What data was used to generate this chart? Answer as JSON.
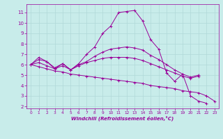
{
  "title": "",
  "xlabel": "Windchill (Refroidissement éolien,°C)",
  "background_color": "#c8ecea",
  "grid_color": "#b0d8d8",
  "line_color": "#990099",
  "xlim": [
    -0.5,
    23.5
  ],
  "ylim": [
    1.8,
    11.8
  ],
  "yticks": [
    2,
    3,
    4,
    5,
    6,
    7,
    8,
    9,
    10,
    11
  ],
  "xticks": [
    0,
    1,
    2,
    3,
    4,
    5,
    6,
    7,
    8,
    9,
    10,
    11,
    12,
    13,
    14,
    15,
    16,
    17,
    18,
    19,
    20,
    21,
    22,
    23
  ],
  "series": [
    {
      "x": [
        0,
        1,
        2,
        3,
        4,
        5,
        6,
        7,
        8,
        9,
        10,
        11,
        12,
        13,
        14,
        15,
        16,
        17,
        18,
        19,
        20,
        21,
        22
      ],
      "y": [
        6.0,
        6.7,
        6.3,
        5.6,
        6.1,
        5.5,
        6.1,
        7.0,
        7.7,
        9.0,
        9.7,
        11.0,
        11.1,
        11.2,
        10.2,
        8.4,
        7.5,
        5.2,
        4.4,
        5.1,
        3.0,
        2.5,
        2.3
      ]
    },
    {
      "x": [
        0,
        1,
        2,
        3,
        4,
        5,
        6,
        7,
        8,
        9,
        10,
        11,
        12,
        13,
        14,
        15,
        16,
        17,
        18,
        19,
        20,
        21
      ],
      "y": [
        6.0,
        6.5,
        6.3,
        5.7,
        6.1,
        5.5,
        6.0,
        6.3,
        6.8,
        7.2,
        7.5,
        7.6,
        7.7,
        7.6,
        7.4,
        6.9,
        6.5,
        6.0,
        5.5,
        5.1,
        4.8,
        5.0
      ]
    },
    {
      "x": [
        0,
        1,
        2,
        3,
        4,
        5,
        6,
        7,
        8,
        9,
        10,
        11,
        12,
        13,
        14,
        15,
        16,
        17,
        18,
        19,
        20,
        21
      ],
      "y": [
        6.0,
        6.2,
        5.9,
        5.6,
        5.9,
        5.5,
        5.9,
        6.2,
        6.4,
        6.6,
        6.7,
        6.7,
        6.7,
        6.6,
        6.4,
        6.1,
        5.8,
        5.5,
        5.2,
        4.9,
        4.7,
        4.9
      ]
    },
    {
      "x": [
        0,
        1,
        2,
        3,
        4,
        5,
        6,
        7,
        8,
        9,
        10,
        11,
        12,
        13,
        14,
        15,
        16,
        17,
        18,
        19,
        20,
        21,
        22,
        23
      ],
      "y": [
        6.0,
        5.8,
        5.6,
        5.4,
        5.3,
        5.1,
        5.0,
        4.9,
        4.8,
        4.7,
        4.6,
        4.5,
        4.4,
        4.3,
        4.2,
        4.0,
        3.9,
        3.8,
        3.7,
        3.5,
        3.4,
        3.3,
        3.0,
        2.5
      ]
    }
  ]
}
